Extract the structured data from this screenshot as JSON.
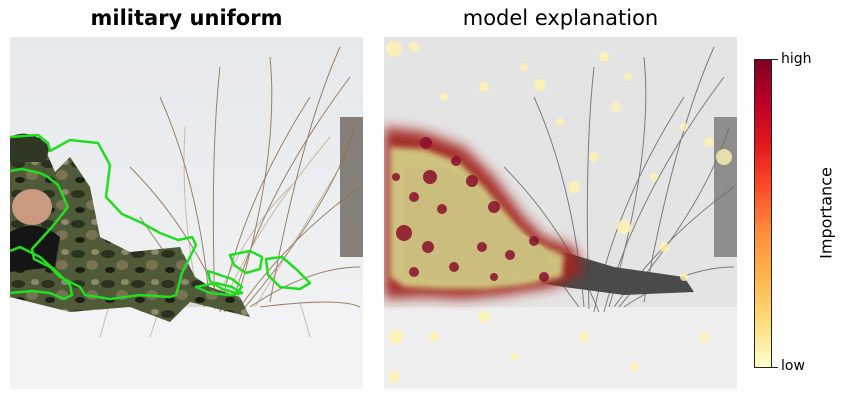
{
  "left_panel": {
    "title": "military uniform"
  },
  "right_panel": {
    "title": "model explanation"
  },
  "colorbar": {
    "high_label": "high",
    "low_label": "low",
    "axis_label": "Importance",
    "colormap": [
      "#800026",
      "#bd0026",
      "#e31a1c",
      "#fc4e2a",
      "#fd8d3c",
      "#feb24c",
      "#fed976",
      "#ffffcc"
    ]
  },
  "colors": {
    "outline": "#22dd22",
    "snow": "#eceeef"
  }
}
